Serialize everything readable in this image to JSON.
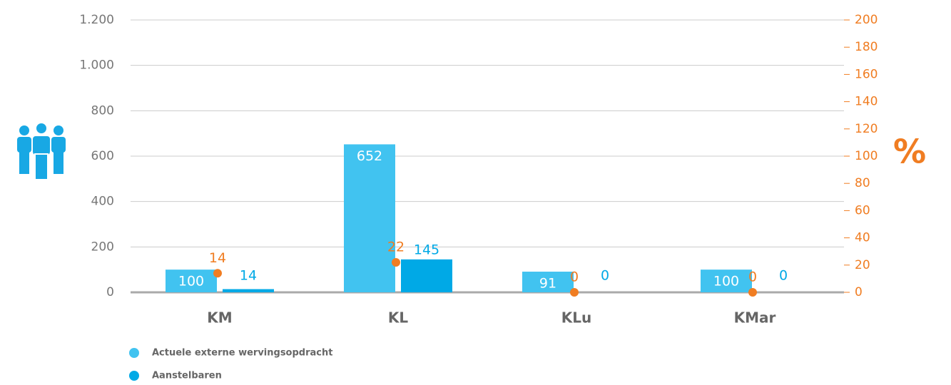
{
  "chart_data": {
    "type": "bar",
    "categories": [
      "KM",
      "KL",
      "KLu",
      "KMar"
    ],
    "series": [
      {
        "name": "Actuele externe wervingsopdracht",
        "color": "#41c3f0",
        "values": [
          100,
          652,
          91,
          100
        ]
      },
      {
        "name": "Aanstelbaren",
        "color": "#00a9e6",
        "values": [
          14,
          145,
          0,
          0
        ]
      },
      {
        "type": "scatter",
        "color": "#f07d22",
        "axis": "y2",
        "values": [
          14,
          22,
          0,
          0
        ]
      }
    ],
    "ylim": [
      0,
      1200
    ],
    "yticks": [
      0,
      200,
      400,
      600,
      800,
      {
        "value": 1000,
        "label": "1.000"
      },
      {
        "value": 1200,
        "label": "1.200"
      }
    ],
    "y2lim": [
      0,
      200
    ],
    "y2ticks": [
      0,
      20,
      40,
      60,
      80,
      100,
      120,
      140,
      160,
      180,
      200
    ],
    "y2label": "%",
    "grid": true
  }
}
